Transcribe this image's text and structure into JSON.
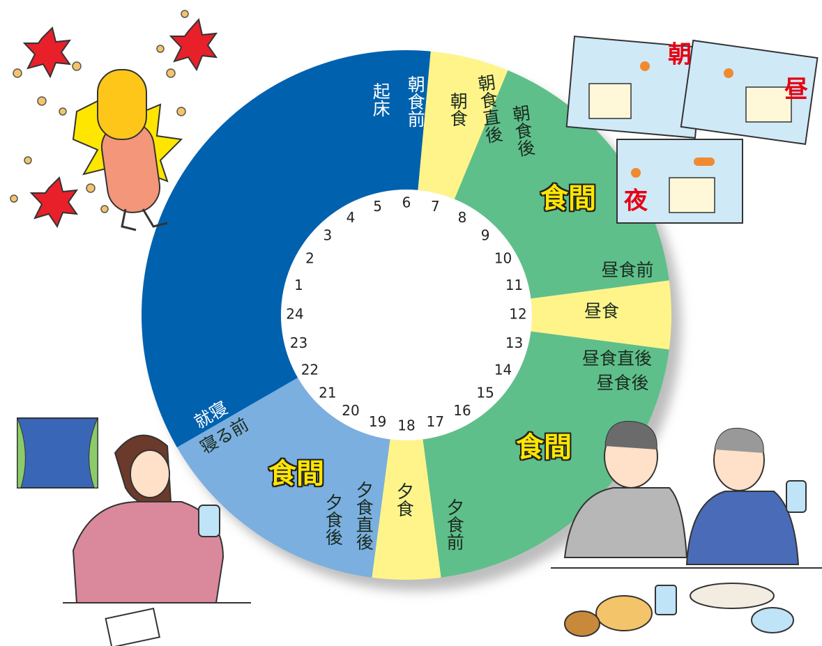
{
  "hours": [
    1,
    2,
    3,
    4,
    5,
    6,
    7,
    8,
    9,
    10,
    11,
    12,
    13,
    14,
    15,
    16,
    17,
    18,
    19,
    20,
    21,
    22,
    23,
    24
  ],
  "ring_labels": [
    "起床",
    "朝食前",
    "朝食",
    "朝食直後",
    "朝食後",
    "食間",
    "昼食前",
    "昼食",
    "昼食直後",
    "昼食後",
    "食間",
    "夕食前",
    "夕食",
    "夕食直後",
    "夕食後",
    "食間",
    "就寝",
    "寝る前"
  ],
  "illustration_labels": [
    "朝",
    "昼",
    "夜"
  ]
}
